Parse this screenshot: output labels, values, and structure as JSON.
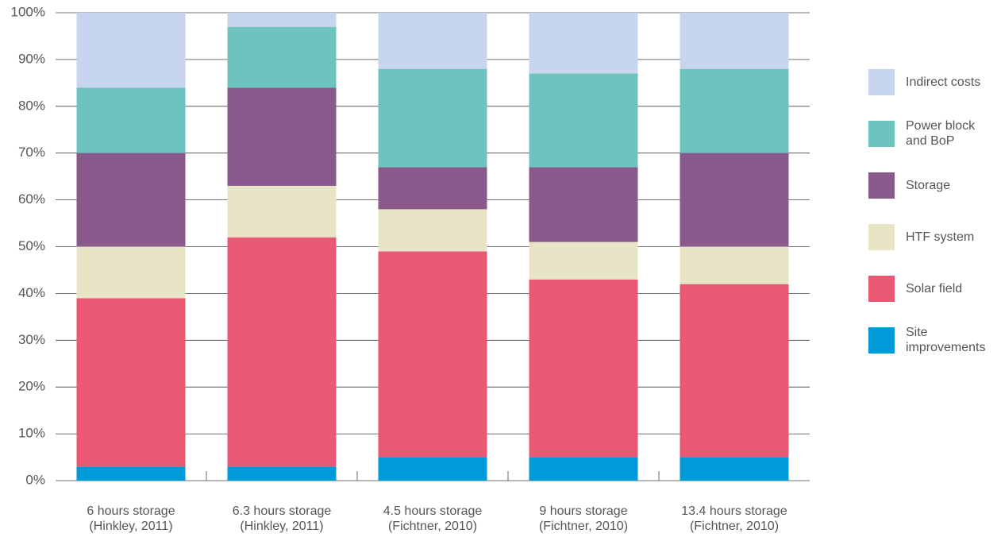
{
  "chart_data": {
    "type": "stacked_bar",
    "categories": [
      "6 hours storage (Hinkley, 2011)",
      "6.3 hours storage (Hinkley, 2011)",
      "4.5 hours storage (Fichtner, 2010)",
      "9 hours storage (Fichtner, 2010)",
      "13.4 hours storage (Fichtner, 2010)"
    ],
    "series": [
      {
        "name": "Site improvements",
        "color": "#009ad8",
        "values": [
          3,
          3,
          5,
          5,
          5
        ]
      },
      {
        "name": "Solar field",
        "color": "#eb5873",
        "values": [
          36,
          49,
          44,
          38,
          37
        ]
      },
      {
        "name": "HTF system",
        "color": "#e8e5c6",
        "values": [
          11,
          11,
          9,
          8,
          8
        ]
      },
      {
        "name": "Storage",
        "color": "#8a5a8c",
        "values": [
          20,
          21,
          9,
          16,
          20
        ]
      },
      {
        "name": "Power block and BoP",
        "color": "#6dc4bf",
        "values": [
          14,
          13,
          21,
          20,
          18
        ]
      },
      {
        "name": "Indirect costs",
        "color": "#c7d5ee",
        "values": [
          16,
          3,
          12,
          13,
          12
        ]
      }
    ],
    "ylim": [
      0,
      100
    ],
    "yticks": [
      {
        "value": 0,
        "label": "0%"
      },
      {
        "value": 10,
        "label": "10%"
      },
      {
        "value": 20,
        "label": "20%"
      },
      {
        "value": 30,
        "label": "30%"
      },
      {
        "value": 40,
        "label": "40%"
      },
      {
        "value": 50,
        "label": "50%"
      },
      {
        "value": 60,
        "label": "60%"
      },
      {
        "value": 70,
        "label": "70%"
      },
      {
        "value": 80,
        "label": "80%"
      },
      {
        "value": 90,
        "label": "90%"
      },
      {
        "value": 100,
        "label": "100%"
      }
    ],
    "grid": true,
    "legend": "right"
  }
}
